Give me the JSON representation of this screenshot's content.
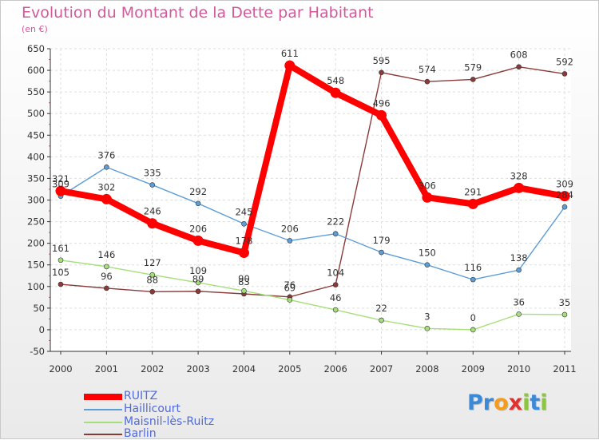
{
  "header": {
    "title": "Evolution du Montant de la Dette par Habitant",
    "subtitle": "(en €)"
  },
  "chart_data": {
    "type": "line",
    "title": "Evolution du Montant de la Dette par Habitant",
    "ylabel": "(en €)",
    "xlabel": "",
    "x": [
      "2000",
      "2001",
      "2002",
      "2003",
      "2004",
      "2005",
      "2006",
      "2007",
      "2008",
      "2009",
      "2010",
      "2011"
    ],
    "ylim": [
      -50,
      650
    ],
    "yticks": [
      "-50",
      "0",
      "50",
      "100",
      "150",
      "200",
      "250",
      "300",
      "350",
      "400",
      "450",
      "500",
      "550",
      "600",
      "650"
    ],
    "grid": true,
    "legend_position": "bottom-left",
    "series": [
      {
        "name": "RUITZ",
        "color": "#ff0000",
        "values": [
          321,
          302,
          246,
          206,
          178,
          611,
          548,
          496,
          306,
          291,
          328,
          309
        ],
        "labels": [
          "321",
          "302",
          "246",
          "206",
          "178",
          "611",
          "548",
          "496",
          "306",
          "291",
          "328",
          "309"
        ]
      },
      {
        "name": "Haillicourt",
        "color": "#5e9ed6",
        "values": [
          309,
          376,
          335,
          292,
          245,
          206,
          222,
          179,
          150,
          116,
          138,
          284
        ],
        "labels": [
          "309",
          "376",
          "335",
          "292",
          "245",
          "206",
          "222",
          "179",
          "150",
          "116",
          "138",
          "284"
        ]
      },
      {
        "name": "Maisnil-lès-Ruitz",
        "color": "#a6df7a",
        "values": [
          161,
          146,
          127,
          109,
          90,
          69,
          46,
          22,
          3,
          0,
          36,
          35
        ],
        "labels": [
          "161",
          "146",
          "127",
          "109",
          "90",
          "69",
          "46",
          "22",
          "3",
          "0",
          "36",
          "35"
        ]
      },
      {
        "name": "Barlin",
        "color": "#8b3a3a",
        "values": [
          105,
          96,
          88,
          89,
          83,
          76,
          104,
          595,
          574,
          579,
          608,
          592
        ],
        "labels": [
          "105",
          "96",
          "88",
          "89",
          "83",
          "76",
          "104",
          "595",
          "574",
          "579",
          "608",
          "592"
        ]
      }
    ]
  },
  "logo": {
    "text": "Proxiti"
  }
}
